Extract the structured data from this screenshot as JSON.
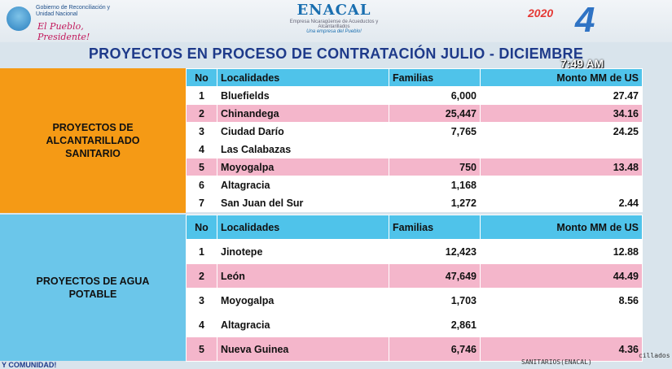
{
  "header": {
    "gov_text": "Gobierno de Reconciliación y Unidad Nacional",
    "gov_slogan": "El Pueblo, Presidente!",
    "enacal_name": "ENACAL",
    "enacal_sub": "Empresa Nicaragüense de Acueductos y Alcantarillados",
    "enacal_slogan": "Una empresa del Pueblo!",
    "channel_badge": "2020",
    "channel_number": "4"
  },
  "title": "PROYECTOS EN PROCESO DE CONTRATACIÓN JULIO - DICIEMBRE",
  "time": "7:49 AM",
  "section1": {
    "label": "PROYECTOS DE ALCANTARILLADO SANITARIO",
    "headers": [
      "No",
      "Localidades",
      "Familias",
      "Monto MM de US"
    ],
    "rows": [
      {
        "no": "1",
        "loc": "Bluefields",
        "fam": "6,000",
        "mon": "27.47"
      },
      {
        "no": "2",
        "loc": "Chinandega",
        "fam": "25,447",
        "mon": "34.16"
      },
      {
        "no": "3",
        "loc": "Ciudad Darío",
        "fam": "7,765",
        "mon": "24.25"
      },
      {
        "no": "4",
        "loc": "Las Calabazas",
        "fam": "",
        "mon": ""
      },
      {
        "no": "5",
        "loc": "Moyogalpa",
        "fam": "750",
        "mon": "13.48"
      },
      {
        "no": "6",
        "loc": "Altagracia",
        "fam": "1,168",
        "mon": ""
      },
      {
        "no": "7",
        "loc": "San Juan del Sur",
        "fam": "1,272",
        "mon": "2.44"
      }
    ]
  },
  "section2": {
    "label": "PROYECTOS DE AGUA POTABLE",
    "headers": [
      "No",
      "Localidades",
      "Familias",
      "Monto MM de US"
    ],
    "rows": [
      {
        "no": "1",
        "loc": "Jinotepe",
        "fam": "12,423",
        "mon": "12.88"
      },
      {
        "no": "2",
        "loc": "León",
        "fam": "47,649",
        "mon": "44.49"
      },
      {
        "no": "3",
        "loc": "Moyogalpa",
        "fam": "1,703",
        "mon": "8.56"
      },
      {
        "no": "4",
        "loc": "Altagracia",
        "fam": "2,861",
        "mon": ""
      },
      {
        "no": "5",
        "loc": "Nueva Guinea",
        "fam": "6,746",
        "mon": "4.36"
      }
    ]
  },
  "footer": {
    "left": "Y COMUNIDAD!",
    "right": "SANITARIOS(ENACAL)",
    "right2": "cillados"
  }
}
